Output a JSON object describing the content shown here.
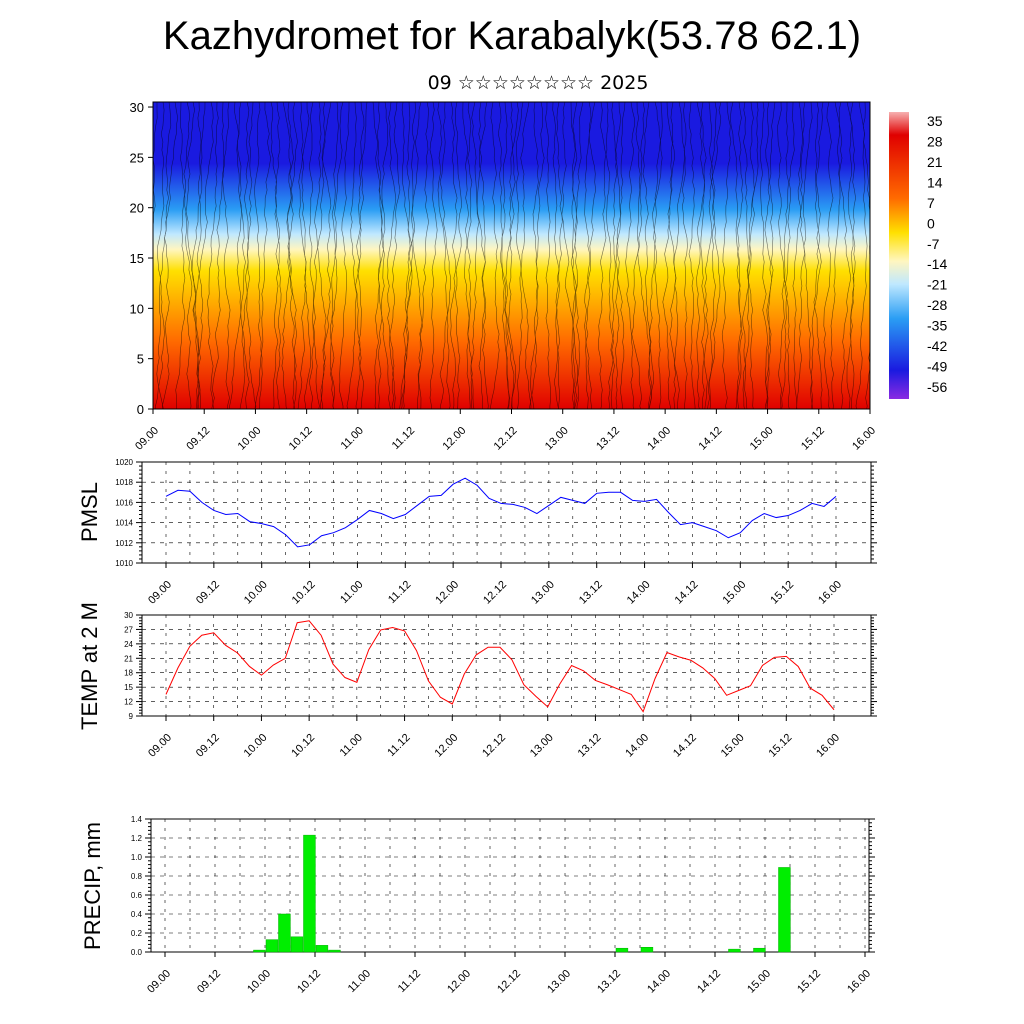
{
  "header": {
    "title": "Kazhydromet for Karabalyk(53.78 62.1)",
    "subtitle": "09 ☆☆☆☆☆☆☆☆ 2025"
  },
  "time_labels": [
    "09.00",
    "09.12",
    "10.00",
    "10.12",
    "11.00",
    "11.12",
    "12.00",
    "12.12",
    "13.00",
    "13.12",
    "14.00",
    "14.12",
    "15.00",
    "15.12",
    "16.00"
  ],
  "chart_data": [
    {
      "type": "heatmap",
      "name": "cross-section",
      "y_ticks": [
        0,
        5,
        10,
        15,
        20,
        25,
        30
      ],
      "ylim": [
        0,
        30.5
      ],
      "colorbar": {
        "labels": [
          "35",
          "28",
          "21",
          "14",
          "7",
          "0",
          "-7",
          "-14",
          "-21",
          "-28",
          "-35",
          "-42",
          "-49",
          "-56"
        ],
        "colors": {
          "hot": "#e00000",
          "warm": "#ff6a00",
          "mild": "#ffe000",
          "cool": "#bfe8ff",
          "cold": "#2a9df4",
          "frigid": "#1a1ae0",
          "top": "#f7b0b0",
          "bottom": "#8a2be2"
        }
      }
    },
    {
      "type": "line",
      "name": "pmsl",
      "ylabel": "PMSL",
      "color": "#0000ff",
      "ylim": [
        1010,
        1020
      ],
      "y_ticks": [
        "1010",
        "1012",
        "1014",
        "1016",
        "1018",
        "1020"
      ],
      "values": [
        1016.6,
        1017.2,
        1017.1,
        1016.0,
        1015.2,
        1014.8,
        1014.9,
        1014.1,
        1013.9,
        1013.6,
        1012.8,
        1011.6,
        1011.8,
        1012.7,
        1013.0,
        1013.5,
        1014.3,
        1015.2,
        1014.9,
        1014.4,
        1014.8,
        1015.7,
        1016.6,
        1016.7,
        1017.8,
        1018.4,
        1017.7,
        1016.4,
        1015.9,
        1015.8,
        1015.5,
        1014.9,
        1015.7,
        1016.5,
        1016.2,
        1015.9,
        1016.9,
        1017.0,
        1017.0,
        1016.2,
        1016.1,
        1016.3,
        1015.0,
        1013.8,
        1014.0,
        1013.6,
        1013.2,
        1012.5,
        1013.0,
        1014.2,
        1014.9,
        1014.5,
        1014.7,
        1015.2,
        1015.9,
        1015.6,
        1016.6
      ]
    },
    {
      "type": "line",
      "name": "temp",
      "ylabel": "TEMP at 2 M",
      "color": "#ff0000",
      "ylim": [
        9,
        30
      ],
      "y_ticks": [
        "9",
        "12",
        "15",
        "18",
        "21",
        "24",
        "27",
        "30"
      ],
      "values": [
        13.5,
        19.0,
        23.5,
        25.8,
        26.3,
        23.7,
        22.1,
        19.3,
        17.5,
        19.6,
        21.0,
        28.4,
        28.8,
        25.8,
        19.8,
        17.0,
        16.0,
        22.8,
        26.9,
        27.4,
        26.7,
        22.6,
        16.3,
        12.9,
        11.5,
        17.7,
        21.7,
        23.3,
        23.3,
        20.7,
        15.5,
        13.1,
        10.9,
        15.6,
        19.5,
        18.4,
        16.4,
        15.5,
        14.5,
        13.5,
        9.9,
        16.8,
        22.2,
        21.3,
        20.6,
        19.0,
        16.8,
        13.3,
        14.3,
        15.3,
        19.5,
        21.2,
        21.4,
        19.3,
        14.8,
        13.3,
        10.3
      ]
    },
    {
      "type": "bar",
      "name": "precip",
      "ylabel": "PRECIP, mm",
      "color": "#00ee00",
      "ylim": [
        0,
        1.4
      ],
      "y_ticks": [
        "0.0",
        "0.2",
        "0.4",
        "0.6",
        "0.8",
        "1.0",
        "1.2",
        "1.4"
      ],
      "values": [
        0,
        0,
        0,
        0,
        0,
        0,
        0,
        0.02,
        0.13,
        0.4,
        0.16,
        1.23,
        0.07,
        0.02,
        0,
        0,
        0,
        0,
        0,
        0,
        0,
        0,
        0,
        0,
        0,
        0,
        0,
        0,
        0,
        0,
        0,
        0,
        0,
        0,
        0,
        0,
        0.04,
        0,
        0.05,
        0,
        0,
        0,
        0,
        0,
        0,
        0.03,
        0,
        0.04,
        0,
        0.89,
        0,
        0,
        0,
        0,
        0,
        0,
        0
      ]
    }
  ]
}
